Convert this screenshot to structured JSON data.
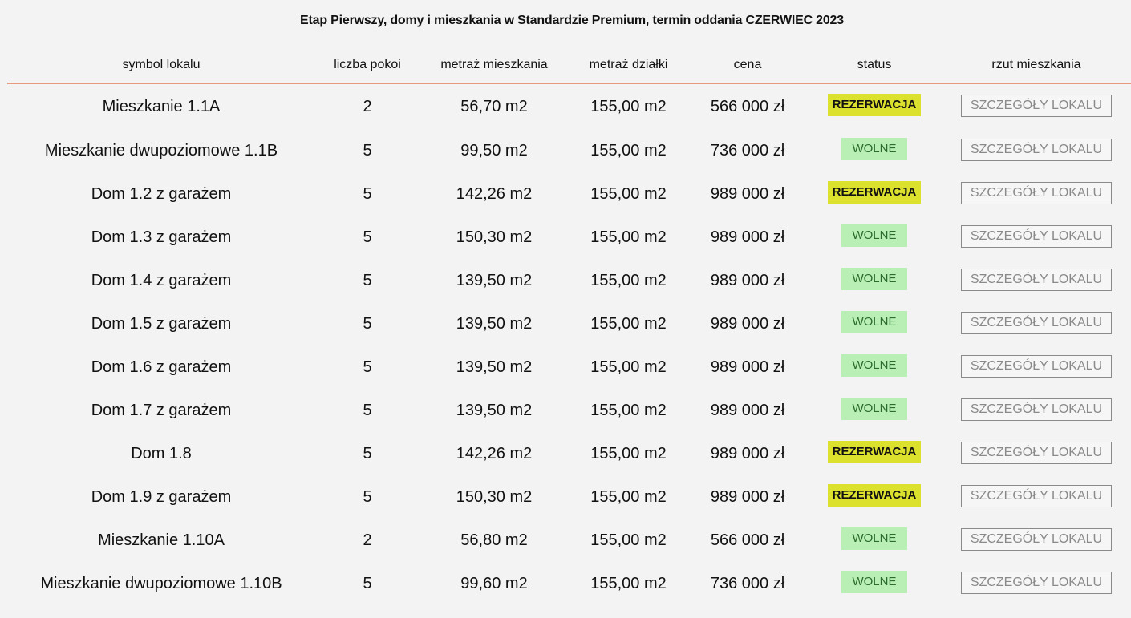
{
  "title": "Etap Pierwszy, domy i mieszkania w Standardzie Premium, termin oddania CZERWIEC 2023",
  "headers": {
    "symbol": "symbol lokalu",
    "rooms": "liczba pokoi",
    "area": "metraż mieszkania",
    "plot": "metraż działki",
    "price": "cena",
    "status": "status",
    "plan": "rzut mieszkania"
  },
  "status_colors": {
    "rezerwacja": "#dce12e",
    "wolne": "#b9efb5",
    "header_border": "#e89a7c"
  },
  "rows": [
    {
      "symbol": "Mieszkanie 1.1A",
      "rooms": "2",
      "area": "56,70 m2",
      "plot": "155,00 m2",
      "price": "566 000 zł",
      "status": "REZERWACJA",
      "status_type": "rez",
      "button": "SZCZEGÓŁY LOKALU"
    },
    {
      "symbol": "Mieszkanie dwupoziomowe 1.1B",
      "rooms": "5",
      "area": "99,50 m2",
      "plot": "155,00 m2",
      "price": "736 000 zł",
      "status": "WOLNE",
      "status_type": "wol",
      "button": "SZCZEGÓŁY LOKALU"
    },
    {
      "symbol": "Dom 1.2 z garażem",
      "rooms": "5",
      "area": "142,26 m2",
      "plot": "155,00 m2",
      "price": "989 000 zł",
      "status": "REZERWACJA",
      "status_type": "rez",
      "button": "SZCZEGÓŁY LOKALU"
    },
    {
      "symbol": "Dom 1.3 z garażem",
      "rooms": "5",
      "area": "150,30 m2",
      "plot": "155,00 m2",
      "price": "989 000 zł",
      "status": "WOLNE",
      "status_type": "wol",
      "button": "SZCZEGÓŁY LOKALU"
    },
    {
      "symbol": "Dom 1.4 z garażem",
      "rooms": "5",
      "area": "139,50 m2",
      "plot": "155,00 m2",
      "price": "989 000 zł",
      "status": "WOLNE",
      "status_type": "wol",
      "button": "SZCZEGÓŁY LOKALU"
    },
    {
      "symbol": "Dom 1.5 z garażem",
      "rooms": "5",
      "area": "139,50 m2",
      "plot": "155,00 m2",
      "price": "989 000 zł",
      "status": "WOLNE",
      "status_type": "wol",
      "button": "SZCZEGÓŁY LOKALU"
    },
    {
      "symbol": "Dom 1.6 z garażem",
      "rooms": "5",
      "area": "139,50 m2",
      "plot": "155,00 m2",
      "price": "989 000 zł",
      "status": "WOLNE",
      "status_type": "wol",
      "button": "SZCZEGÓŁY LOKALU"
    },
    {
      "symbol": "Dom 1.7 z garażem",
      "rooms": "5",
      "area": "139,50 m2",
      "plot": "155,00 m2",
      "price": "989 000 zł",
      "status": "WOLNE",
      "status_type": "wol",
      "button": "SZCZEGÓŁY LOKALU"
    },
    {
      "symbol": "Dom 1.8",
      "rooms": "5",
      "area": "142,26 m2",
      "plot": "155,00 m2",
      "price": "989 000 zł",
      "status": "REZERWACJA",
      "status_type": "rez",
      "button": "SZCZEGÓŁY LOKALU"
    },
    {
      "symbol": "Dom 1.9 z garażem",
      "rooms": "5",
      "area": "150,30 m2",
      "plot": "155,00 m2",
      "price": "989 000 zł",
      "status": "REZERWACJA",
      "status_type": "rez",
      "button": "SZCZEGÓŁY LOKALU"
    },
    {
      "symbol": "Mieszkanie 1.10A",
      "rooms": "2",
      "area": "56,80 m2",
      "plot": "155,00 m2",
      "price": "566 000 zł",
      "status": "WOLNE",
      "status_type": "wol",
      "button": "SZCZEGÓŁY LOKALU"
    },
    {
      "symbol": "Mieszkanie dwupoziomowe 1.10B",
      "rooms": "5",
      "area": "99,60 m2",
      "plot": "155,00 m2",
      "price": "736 000 zł",
      "status": "WOLNE",
      "status_type": "wol",
      "button": "SZCZEGÓŁY LOKALU"
    }
  ]
}
